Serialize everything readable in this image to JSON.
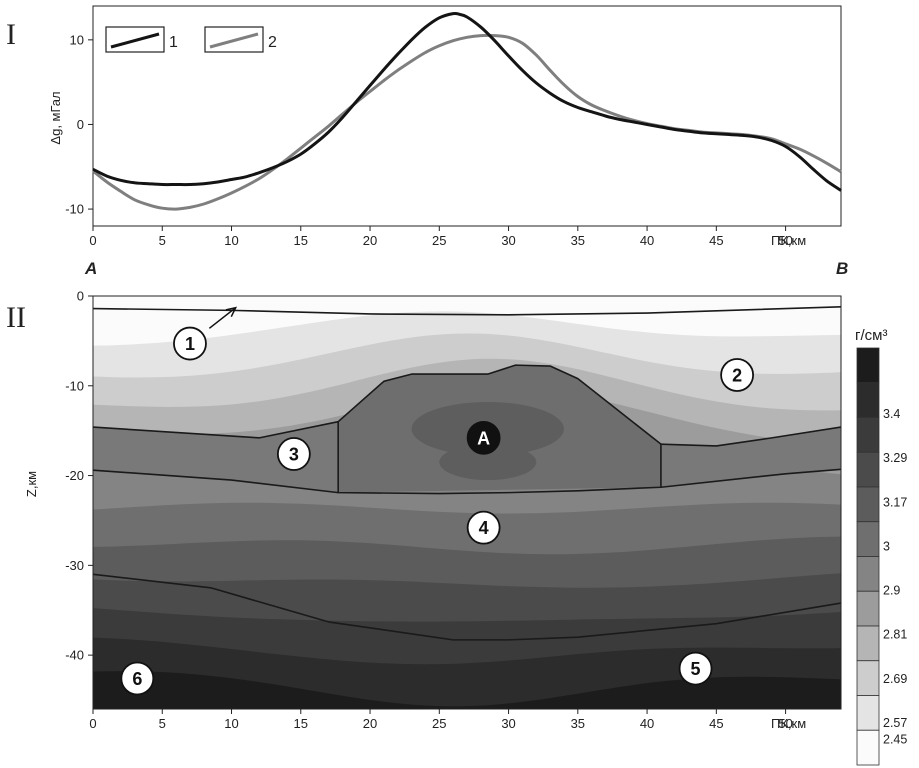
{
  "panels": {
    "top_label": "I",
    "bottom_label": "II",
    "profile_start": "A",
    "profile_end": "B"
  },
  "colors": {
    "curve_1": "#141414",
    "curve_2": "#7f7f7f",
    "boundary": "#1a1a1a"
  },
  "chart_data": [
    {
      "type": "line",
      "ylabel": "Δg, мГал",
      "xlabel": "ПК,км",
      "xlim": [
        0,
        54
      ],
      "ylim": [
        -12,
        14
      ],
      "x_ticks": [
        "0",
        "5",
        "10",
        "15",
        "20",
        "25",
        "30",
        "35",
        "40",
        "45",
        "50"
      ],
      "y_ticks": [
        "10",
        "0",
        "-10"
      ],
      "legend_position": "top-left",
      "series": [
        {
          "name": "1",
          "x": [
            0,
            1,
            2,
            3,
            4,
            5,
            6,
            7,
            8,
            9,
            10,
            11,
            12,
            13,
            14,
            15,
            16,
            17,
            18,
            19,
            20,
            21,
            22,
            23,
            24,
            25,
            26,
            26.5,
            27,
            28,
            29,
            30,
            31,
            32,
            33,
            34,
            35,
            36,
            37,
            38,
            39,
            40,
            41,
            42,
            43,
            44,
            45,
            46,
            47,
            48,
            49,
            50,
            51,
            52,
            53,
            54
          ],
          "values": [
            -5.3,
            -6.1,
            -6.6,
            -6.9,
            -7.0,
            -7.1,
            -7.1,
            -7.1,
            -7.0,
            -6.8,
            -6.5,
            -6.2,
            -5.7,
            -5.1,
            -4.4,
            -3.5,
            -2.3,
            -0.9,
            0.8,
            2.7,
            4.6,
            6.5,
            8.3,
            10.0,
            11.5,
            12.6,
            13.1,
            13.0,
            12.7,
            11.5,
            9.9,
            8.1,
            6.4,
            4.9,
            3.7,
            2.7,
            2.0,
            1.5,
            1.0,
            0.6,
            0.3,
            0.0,
            -0.3,
            -0.6,
            -0.8,
            -1.0,
            -1.1,
            -1.2,
            -1.3,
            -1.5,
            -1.9,
            -2.6,
            -3.8,
            -5.3,
            -6.7,
            -7.8
          ]
        },
        {
          "name": "2",
          "x": [
            0,
            1,
            2,
            3,
            4,
            5,
            6,
            7,
            8,
            9,
            10,
            11,
            12,
            13,
            14,
            15,
            16,
            17,
            18,
            19,
            20,
            21,
            22,
            23,
            24,
            25,
            26,
            27,
            28,
            29,
            30,
            31,
            32,
            33,
            34,
            35,
            36,
            37,
            38,
            39,
            40,
            41,
            42,
            43,
            44,
            45,
            46,
            47,
            48,
            49,
            50,
            51,
            52,
            53,
            54
          ],
          "values": [
            -5.5,
            -6.8,
            -7.9,
            -8.9,
            -9.5,
            -9.9,
            -10.0,
            -9.8,
            -9.4,
            -8.8,
            -8.1,
            -7.3,
            -6.4,
            -5.3,
            -4.1,
            -2.8,
            -1.5,
            -0.2,
            1.2,
            2.6,
            3.9,
            5.2,
            6.4,
            7.5,
            8.5,
            9.3,
            9.9,
            10.3,
            10.5,
            10.5,
            10.3,
            9.6,
            8.2,
            6.4,
            4.7,
            3.3,
            2.3,
            1.6,
            1.0,
            0.5,
            0.1,
            -0.2,
            -0.5,
            -0.7,
            -0.9,
            -1.0,
            -1.1,
            -1.2,
            -1.4,
            -1.7,
            -2.3,
            -2.9,
            -3.7,
            -4.6,
            -5.6
          ]
        }
      ]
    },
    {
      "type": "heatmap",
      "title": "",
      "ylabel": "Z,км",
      "xlabel": "ПК,км",
      "xlim": [
        0,
        54
      ],
      "ylim": [
        -46,
        0
      ],
      "x_ticks": [
        "0",
        "5",
        "10",
        "15",
        "20",
        "25",
        "30",
        "35",
        "40",
        "45",
        "50"
      ],
      "y_ticks": [
        "0",
        "-10",
        "-20",
        "-30",
        "-40"
      ],
      "colorbar": {
        "title": "г/см³",
        "labels": [
          "3.4",
          "3.29",
          "3.17",
          "3",
          "2.9",
          "2.81",
          "2.69",
          "2.57",
          "2.45"
        ],
        "colors": [
          "#1c1c1c",
          "#2c2c2c",
          "#3b3b3b",
          "#4b4b4b",
          "#5c5c5c",
          "#6f6f6f",
          "#848484",
          "#9c9c9c",
          "#b5b5b5",
          "#cdcdcd",
          "#e4e4e4",
          "#fbfbfb"
        ]
      },
      "body_a_fill": "#6e6e6e",
      "body_a_core_fill": "#5e5e5e",
      "boundaries": [
        {
          "x": [
            0,
            10,
            20,
            30,
            40,
            54
          ],
          "z": [
            -1.4,
            -1.6,
            -2.0,
            -2.1,
            -1.9,
            -1.2
          ]
        },
        {
          "x": [
            0,
            12,
            17.7
          ],
          "z": [
            -14.6,
            -15.8,
            -14.0
          ]
        },
        {
          "x": [
            41,
            45,
            49,
            54
          ],
          "z": [
            -16.5,
            -16.7,
            -15.8,
            -14.6
          ]
        },
        {
          "x": [
            0,
            10,
            17.7,
            25,
            30,
            35,
            41,
            50,
            54
          ],
          "z": [
            -19.4,
            -20.5,
            -21.9,
            -22.0,
            -21.9,
            -21.7,
            -21.3,
            -19.8,
            -19.3
          ]
        },
        {
          "x": [
            17.7,
            17.7,
            21,
            23,
            28.5,
            30.5,
            33,
            35,
            41,
            41
          ],
          "z": [
            -21.9,
            -14.0,
            -9.5,
            -8.7,
            -8.7,
            -7.7,
            -7.8,
            -9.2,
            -16.5,
            -21.3
          ]
        },
        {
          "x": [
            0,
            8.5,
            17,
            26,
            30,
            35,
            45,
            54
          ],
          "z": [
            -31.0,
            -32.5,
            -36.3,
            -38.3,
            -38.3,
            -38.0,
            -36.5,
            -34.2
          ]
        }
      ],
      "markers": [
        {
          "label": "1",
          "x": 7,
          "z": -5.3,
          "style": "white"
        },
        {
          "label": "2",
          "x": 46.5,
          "z": -8.8,
          "style": "white"
        },
        {
          "label": "3",
          "x": 14.5,
          "z": -17.6,
          "style": "white"
        },
        {
          "label": "A",
          "x": 28.2,
          "z": -15.8,
          "style": "black"
        },
        {
          "label": "4",
          "x": 28.2,
          "z": -25.8,
          "style": "white"
        },
        {
          "label": "5",
          "x": 43.5,
          "z": -41.5,
          "style": "white"
        },
        {
          "label": "6",
          "x": 3.2,
          "z": -42.6,
          "style": "white"
        }
      ],
      "arrow": {
        "from_x": 8.4,
        "from_z": -3.6,
        "to_x": 10.3,
        "to_z": -1.3
      }
    }
  ]
}
